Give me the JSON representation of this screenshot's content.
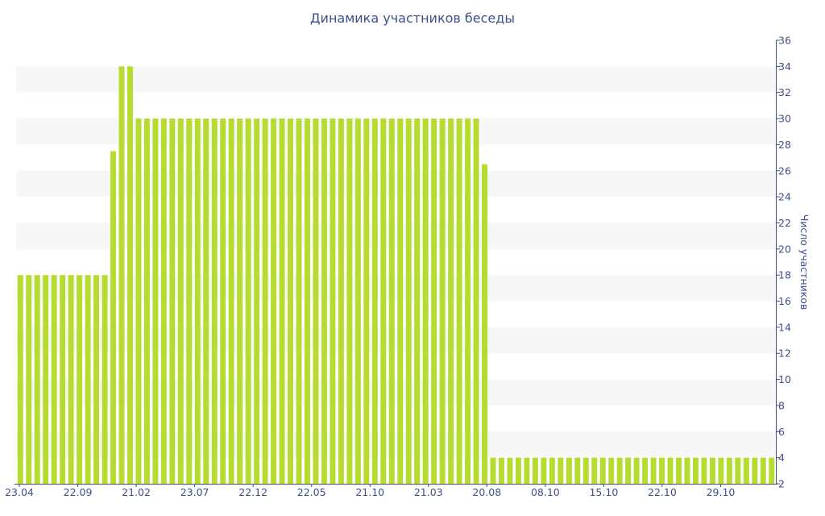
{
  "chart_data": {
    "type": "bar",
    "title": "Динамика участников беседы",
    "xlabel": "",
    "ylabel": "Число участников",
    "ylim": [
      2,
      36
    ],
    "yticks": [
      2,
      4,
      6,
      8,
      10,
      12,
      14,
      16,
      18,
      20,
      22,
      24,
      26,
      28,
      30,
      32,
      34,
      36
    ],
    "x_tick_labels": [
      "23.04",
      "22.09",
      "21.02",
      "23.07",
      "22.12",
      "22.05",
      "21.10",
      "21.03",
      "20.08",
      "08.10",
      "15.10",
      "22.10",
      "29.10"
    ],
    "y_axis_position": "right",
    "grid": "alternating horizontal bands",
    "legend": "none",
    "colors": {
      "bar": "#b5dc2e",
      "band": "#f7f7f7",
      "text": "#3e4f8a",
      "axis": "#3e4f8a"
    },
    "values": [
      18,
      18,
      18,
      18,
      18,
      18,
      18,
      18,
      18,
      18,
      18,
      27.5,
      34,
      34,
      30,
      30,
      30,
      30,
      30,
      30,
      30,
      30,
      30,
      30,
      30,
      30,
      30,
      30,
      30,
      30,
      30,
      30,
      30,
      30,
      30,
      30,
      30,
      30,
      30,
      30,
      30,
      30,
      30,
      30,
      30,
      30,
      30,
      30,
      30,
      30,
      30,
      30,
      30,
      30,
      30,
      26.5,
      4,
      4,
      4,
      4,
      4,
      4,
      4,
      4,
      4,
      4,
      4,
      4,
      4,
      4,
      4,
      4,
      4,
      4,
      4,
      4,
      4,
      4,
      4,
      4,
      4,
      4,
      4,
      4,
      4,
      4,
      4,
      4,
      4,
      4
    ]
  }
}
